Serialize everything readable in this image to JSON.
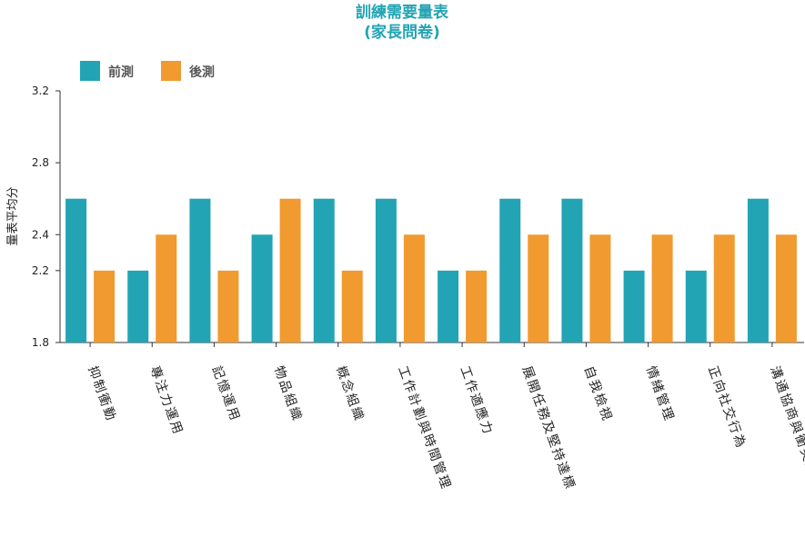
{
  "chart_data": {
    "type": "bar",
    "title": [
      "訓練需要量表",
      "(家長問卷)"
    ],
    "ylabel": "量表平均分",
    "xlabel": "",
    "ylim": [
      1.8,
      3.2
    ],
    "yticks": [
      1.8,
      2.2,
      2.4,
      2.8,
      3.2
    ],
    "ytick_labels": [
      "1.8",
      "2.2",
      "2.4",
      "2.8",
      "3.2"
    ],
    "categories": [
      "抑制衝動",
      "專注力運用",
      "記憶運用",
      "物品組織",
      "概念組織",
      "工作計劃與時間管理",
      "工作適應力",
      "展開任務及堅持達標",
      "自我檢視",
      "情緒管理",
      "正向社交行為",
      "溝通協商與衝突處理"
    ],
    "series": [
      {
        "name": "前測",
        "color": "#22a4b4",
        "values": [
          2.6,
          2.2,
          2.6,
          2.4,
          2.6,
          2.6,
          2.2,
          2.6,
          2.6,
          2.2,
          2.2,
          2.6
        ]
      },
      {
        "name": "後測",
        "color": "#f09a30",
        "values": [
          2.2,
          2.4,
          2.2,
          2.6,
          2.2,
          2.4,
          2.2,
          2.4,
          2.4,
          2.4,
          2.4,
          2.4
        ]
      }
    ],
    "grid": false,
    "legend": "top-left"
  }
}
